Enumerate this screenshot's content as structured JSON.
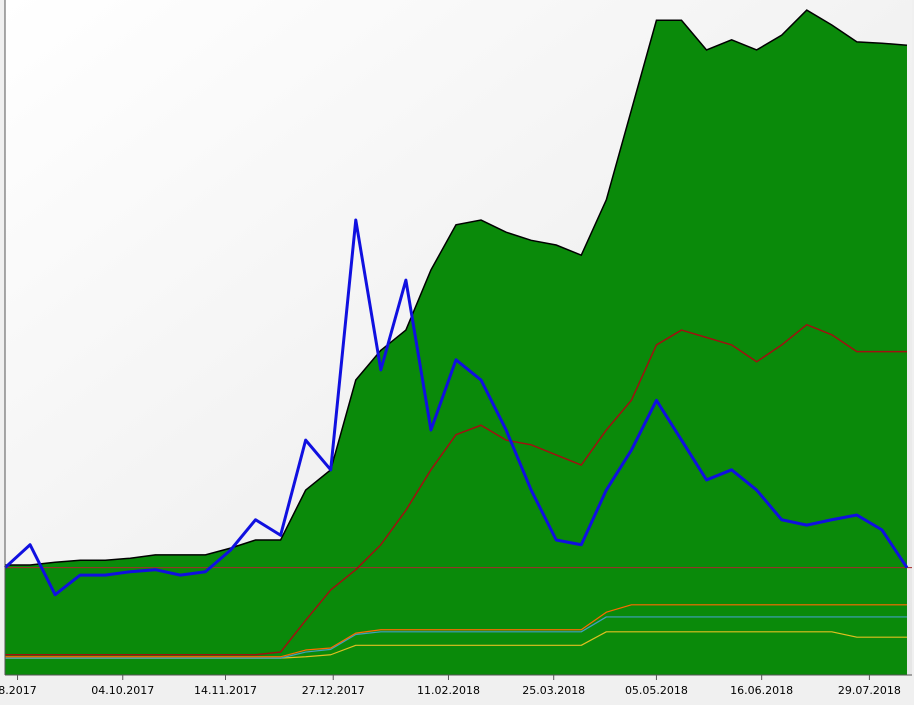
{
  "chart_data": {
    "type": "line",
    "x": [
      "18.08.2017",
      "28.08.2017",
      "07.09.2017",
      "17.09.2017",
      "27.09.2017",
      "07.10.2017",
      "17.10.2017",
      "27.10.2017",
      "06.11.2017",
      "16.11.2017",
      "26.11.2017",
      "06.12.2017",
      "16.12.2017",
      "26.12.2017",
      "05.01.2018",
      "15.01.2018",
      "25.01.2018",
      "04.02.2018",
      "14.02.2018",
      "24.02.2018",
      "06.03.2018",
      "16.03.2018",
      "26.03.2018",
      "05.04.2018",
      "15.04.2018",
      "25.04.2018",
      "05.05.2018",
      "15.05.2018",
      "25.05.2018",
      "04.06.2018",
      "14.06.2018",
      "24.06.2018",
      "04.07.2018",
      "14.07.2018",
      "24.07.2018",
      "03.08.2018",
      "13.08.2018"
    ],
    "xlim": [
      "18.08.2017",
      "15.08.2018"
    ],
    "xticks": [
      {
        "value": "23.08.2017",
        "label": "8.2017"
      },
      "04.10.2017",
      "14.11.2017",
      "27.12.2017",
      "11.02.2018",
      "25.03.2018",
      "05.05.2018",
      "16.06.2018",
      "29.07.2018"
    ],
    "ylim": [
      0,
      100
    ],
    "reference_line": 15.9,
    "reference_color": "#a52a2a",
    "area": {
      "fill": "#0a8a0a",
      "color": "#000000",
      "values": [
        16.3,
        16.3,
        16.7,
        17,
        17,
        17.3,
        17.8,
        17.8,
        17.8,
        18.8,
        20,
        20,
        27.4,
        30.4,
        43.7,
        48.1,
        51.1,
        60,
        66.7,
        67.4,
        65.6,
        64.4,
        63.7,
        62.2,
        70.4,
        83.7,
        97,
        97,
        92.6,
        94.1,
        92.6,
        94.8,
        98.5,
        96.3,
        93.8,
        93.6,
        93.3
      ]
    },
    "series": [
      {
        "color": "#1010e0",
        "width": 3,
        "values": [
          15.9,
          19.3,
          11.9,
          14.8,
          14.8,
          15.3,
          15.6,
          14.8,
          15.3,
          18.5,
          23,
          20.7,
          34.8,
          30.4,
          67.4,
          45.2,
          58.5,
          36.3,
          46.7,
          43.7,
          36.3,
          27.4,
          20,
          19.3,
          27.4,
          33.3,
          40.7,
          34.8,
          28.9,
          30.4,
          27.4,
          23,
          22.2,
          23,
          23.7,
          21.5,
          15.9
        ]
      },
      {
        "color": "#a01010",
        "width": 1.5,
        "values": [
          3,
          3,
          3,
          3,
          3,
          3,
          3,
          3,
          3,
          3,
          3,
          3.4,
          8.1,
          12.6,
          15.6,
          19.3,
          24.4,
          30.4,
          35.6,
          37,
          34.8,
          34.1,
          32.6,
          31.1,
          36.3,
          40.7,
          48.9,
          51.1,
          50,
          48.9,
          46.4,
          48.9,
          51.9,
          50.4,
          47.9,
          47.9,
          47.9
        ]
      },
      {
        "color": "#ff6a00",
        "width": 1.2,
        "values": [
          2.7,
          2.7,
          2.7,
          2.7,
          2.7,
          2.7,
          2.7,
          2.7,
          2.7,
          2.7,
          2.7,
          2.7,
          3.7,
          4,
          6.2,
          6.7,
          6.7,
          6.7,
          6.7,
          6.7,
          6.7,
          6.7,
          6.7,
          6.7,
          9.3,
          10.4,
          10.4,
          10.4,
          10.4,
          10.4,
          10.4,
          10.4,
          10.4,
          10.4,
          10.4,
          10.4,
          10.4
        ]
      },
      {
        "color": "#40a0c0",
        "width": 1.2,
        "values": [
          2.5,
          2.5,
          2.5,
          2.5,
          2.5,
          2.5,
          2.5,
          2.5,
          2.5,
          2.5,
          2.5,
          2.5,
          3.4,
          3.8,
          6,
          6.4,
          6.4,
          6.4,
          6.4,
          6.4,
          6.4,
          6.4,
          6.4,
          6.4,
          8.6,
          8.6,
          8.6,
          8.6,
          8.6,
          8.6,
          8.6,
          8.6,
          8.6,
          8.6,
          8.6,
          8.6,
          8.6
        ]
      },
      {
        "color": "#e0c020",
        "width": 1.2,
        "values": [
          2.5,
          2.5,
          2.5,
          2.5,
          2.5,
          2.5,
          2.5,
          2.5,
          2.5,
          2.5,
          2.5,
          2.5,
          2.7,
          3,
          4.4,
          4.4,
          4.4,
          4.4,
          4.4,
          4.4,
          4.4,
          4.4,
          4.4,
          4.4,
          6.4,
          6.4,
          6.4,
          6.4,
          6.4,
          6.4,
          6.4,
          6.4,
          6.4,
          6.4,
          5.6,
          5.6,
          5.6
        ]
      }
    ]
  }
}
